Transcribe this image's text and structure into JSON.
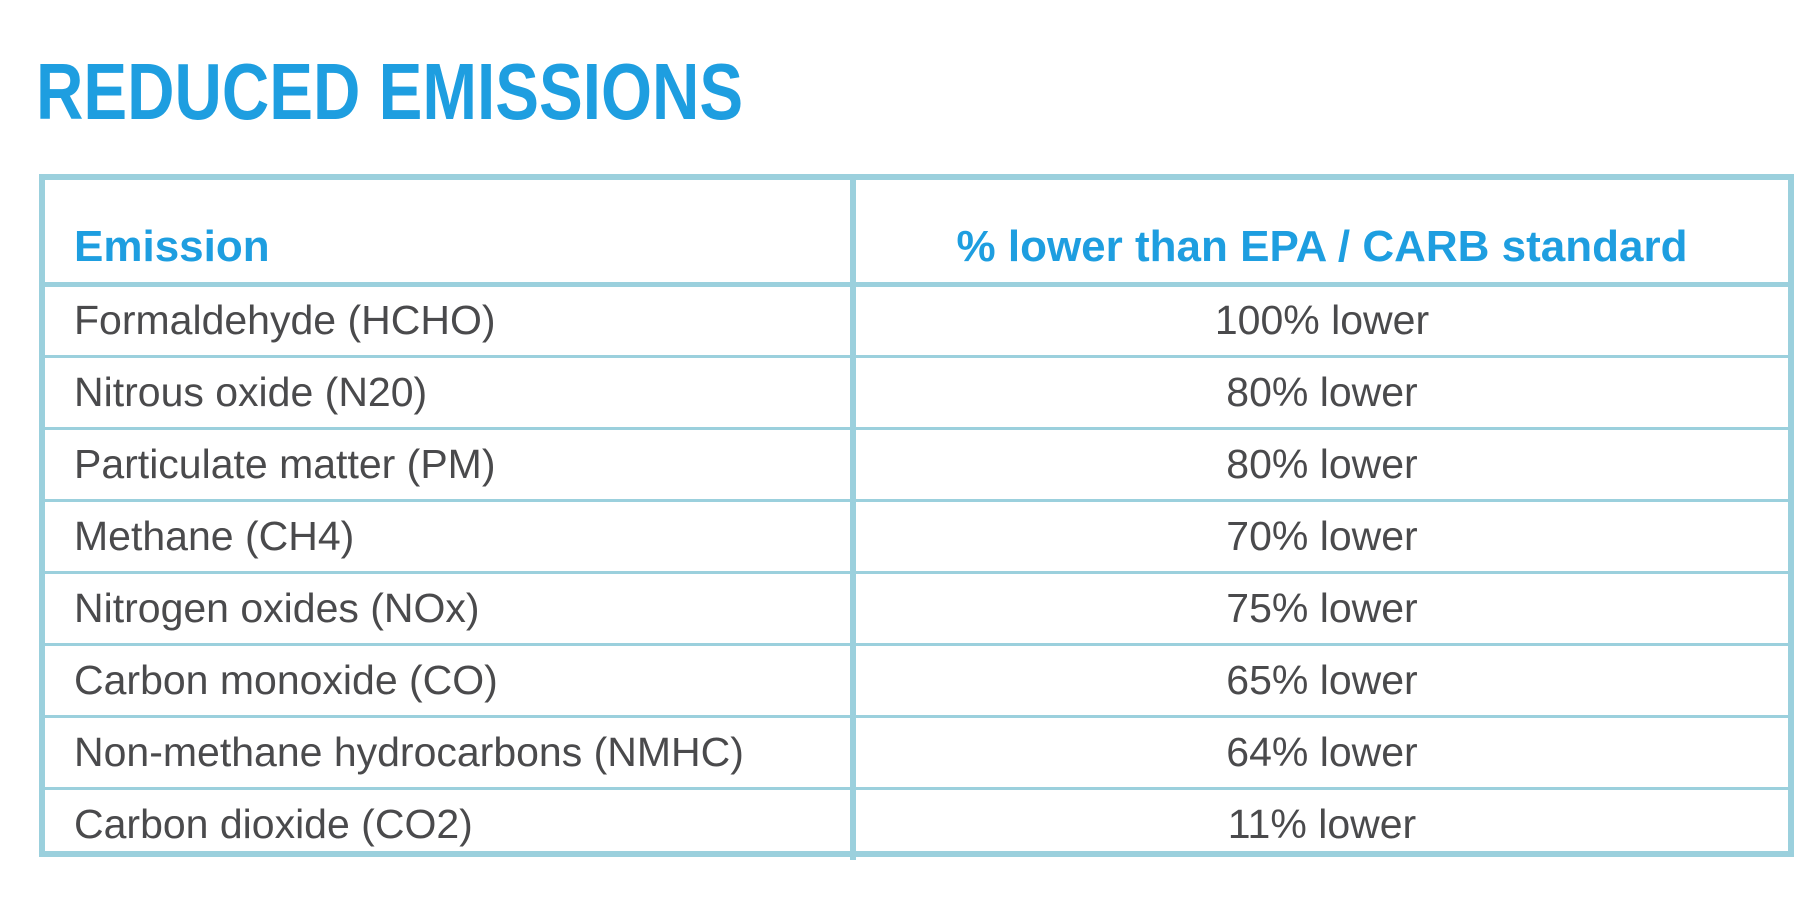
{
  "title": "REDUCED EMISSIONS",
  "table": {
    "headers": [
      "Emission",
      "% lower than EPA / CARB standard"
    ],
    "rows": [
      {
        "emission": "Formaldehyde (HCHO)",
        "reduction": "100% lower"
      },
      {
        "emission": "Nitrous oxide (N20)",
        "reduction": "80% lower"
      },
      {
        "emission": "Particulate matter (PM)",
        "reduction": "80% lower"
      },
      {
        "emission": "Methane (CH4)",
        "reduction": "70% lower"
      },
      {
        "emission": "Nitrogen oxides (NOx)",
        "reduction": "75% lower"
      },
      {
        "emission": "Carbon monoxide (CO)",
        "reduction": "65% lower"
      },
      {
        "emission": "Non-methane hydrocarbons (NMHC)",
        "reduction": "64% lower"
      },
      {
        "emission": "Carbon dioxide (CO2)",
        "reduction": "11% lower"
      }
    ]
  },
  "colors": {
    "accent": "#1e9ee0",
    "border": "#9bd0dd",
    "text": "#4a4a4c"
  }
}
